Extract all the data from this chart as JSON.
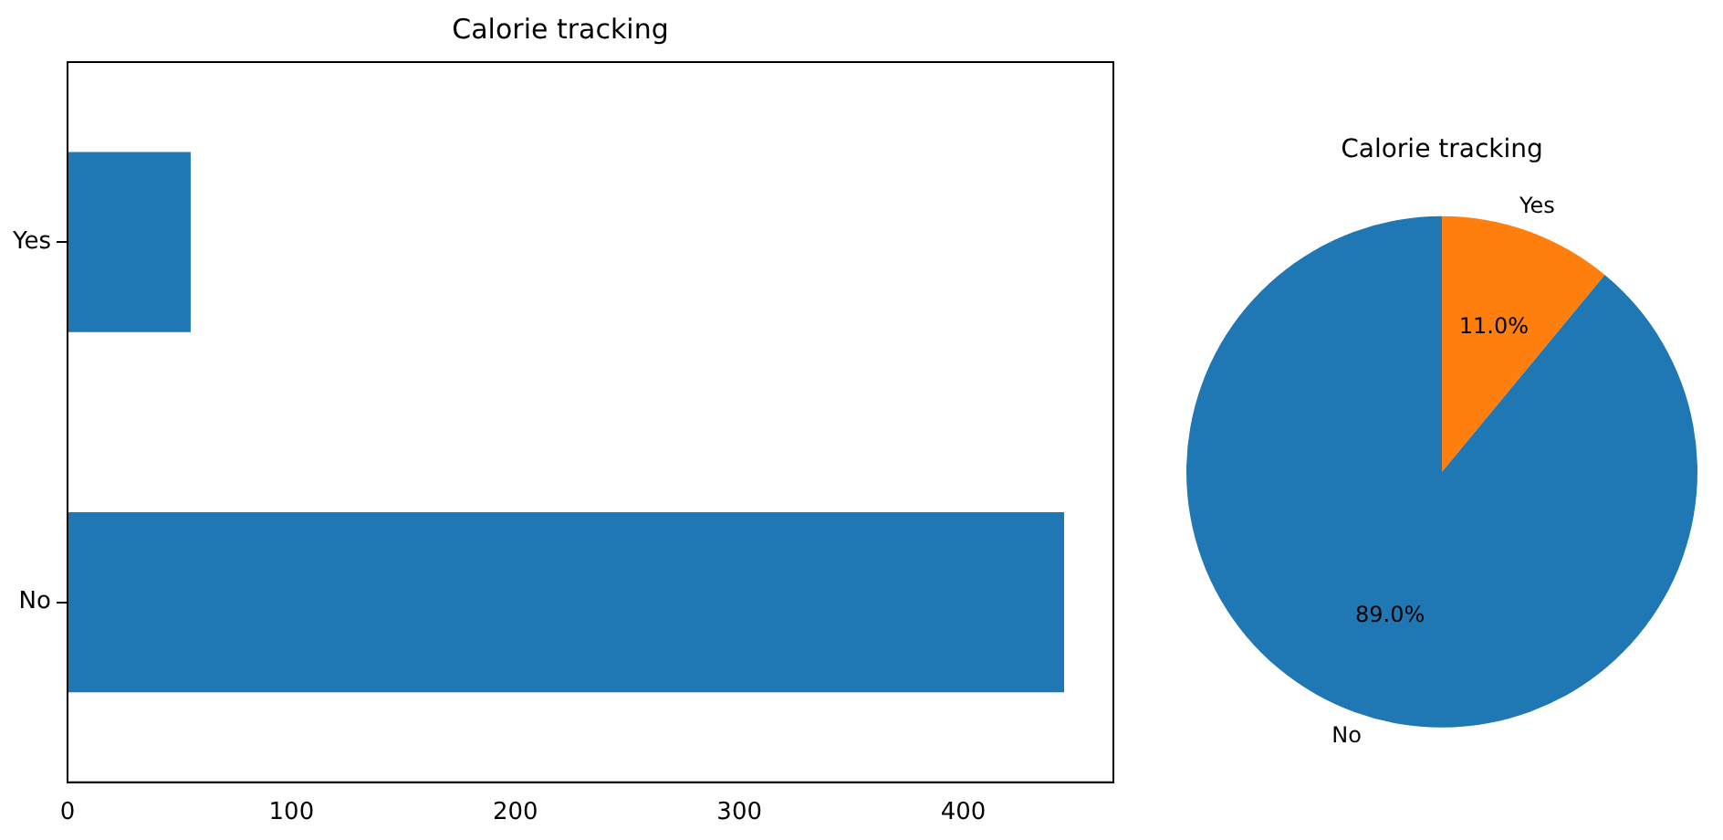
{
  "chart_data": [
    {
      "type": "bar",
      "title": "Calorie tracking",
      "orientation": "horizontal",
      "categories": [
        "Yes",
        "No"
      ],
      "values": [
        55,
        445
      ],
      "color": "#1f77b4",
      "xlim": [
        0,
        467
      ],
      "xticks": [
        0,
        100,
        200,
        300,
        400
      ],
      "grid": false,
      "legend": false
    },
    {
      "type": "pie",
      "title": "Calorie tracking",
      "categories": [
        "No",
        "Yes"
      ],
      "values": [
        89,
        11
      ],
      "colors": [
        "#1f77b4",
        "#ff7f0e"
      ],
      "value_labels": [
        "89.0%",
        "11.0%"
      ],
      "legend": false
    }
  ]
}
